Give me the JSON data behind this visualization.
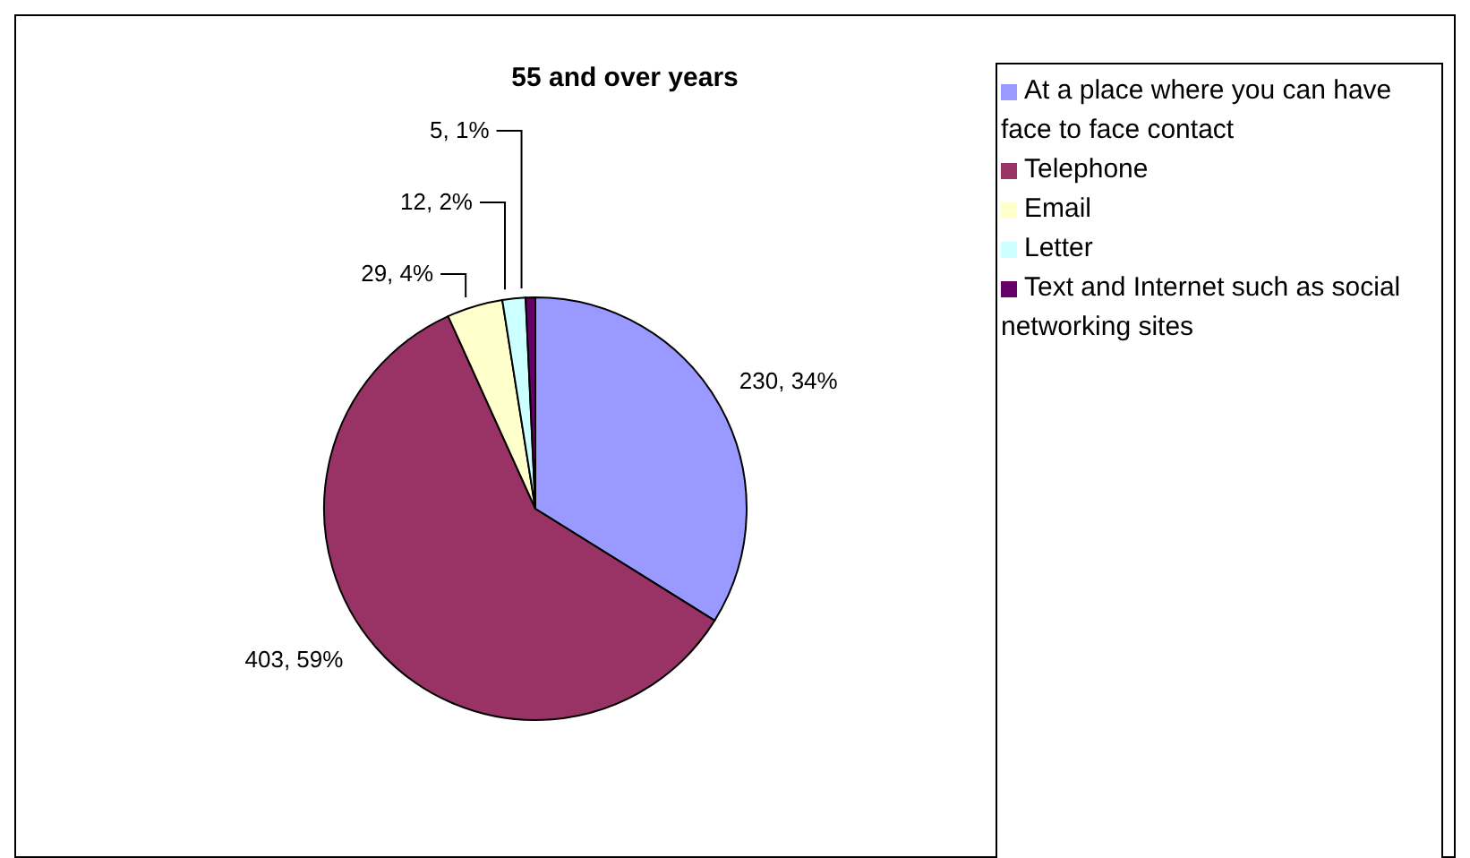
{
  "chart_data": {
    "type": "pie",
    "title": "55 and over years",
    "categories": [
      "At a place where you can have face to face contact",
      "Telephone",
      "Email",
      "Letter",
      "Text and Internet such as social networking sites"
    ],
    "values": [
      230,
      403,
      29,
      12,
      5
    ],
    "value_labels": [
      "230, 34%",
      "403, 59%",
      "29, 4%",
      "12, 2%",
      "5, 1%"
    ],
    "colors": [
      "#9999ff",
      "#993366",
      "#ffffcc",
      "#ccffff",
      "#660066"
    ],
    "legend": "right"
  }
}
